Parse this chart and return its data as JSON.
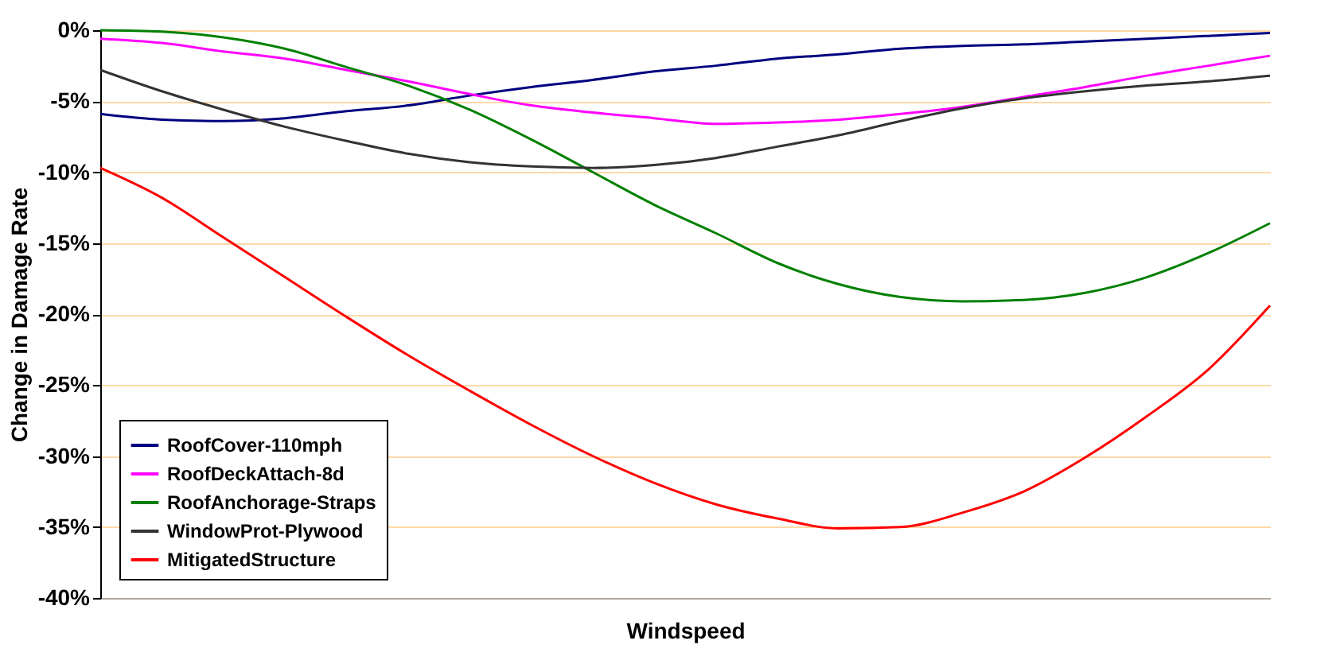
{
  "chart_data": {
    "type": "line",
    "xlabel": "Windspeed",
    "ylabel": "Change in Damage Rate",
    "categories": [
      null,
      null,
      null,
      null,
      null,
      null,
      null,
      null,
      null,
      null,
      null,
      null,
      null,
      null,
      null,
      null,
      null,
      null,
      null,
      null
    ],
    "ylim": [
      -40,
      0
    ],
    "yticks": [
      {
        "value": 0,
        "label": "0%"
      },
      {
        "value": -5,
        "label": "-5%"
      },
      {
        "value": -10,
        "label": "-10%"
      },
      {
        "value": -15,
        "label": "-15%"
      },
      {
        "value": -20,
        "label": "-20%"
      },
      {
        "value": -25,
        "label": "-25%"
      },
      {
        "value": -30,
        "label": "-30%"
      },
      {
        "value": -35,
        "label": "-35%"
      },
      {
        "value": -40,
        "label": "-40%"
      }
    ],
    "grid": "y",
    "legend": "bottom left",
    "marker": "none",
    "line_style": "solid",
    "tick_labels": "y",
    "series": [
      {
        "name": "RoofCover-110mph",
        "color": "#000080",
        "values": [
          -5.9,
          -6.3,
          -6.4,
          -6.2,
          -5.7,
          -5.3,
          -4.6,
          -4.0,
          -3.5,
          -2.9,
          -2.5,
          -2.0,
          -1.7,
          -1.3,
          -1.1,
          -1.0,
          -0.8,
          -0.6,
          -0.4,
          -0.2
        ]
      },
      {
        "name": "RoofDeckAttach-8d",
        "color": "#ff00ff",
        "values": [
          -0.6,
          -0.9,
          -1.5,
          -2.0,
          -2.8,
          -3.6,
          -4.5,
          -5.3,
          -5.8,
          -6.2,
          -6.6,
          -6.5,
          -6.3,
          -5.9,
          -5.4,
          -4.7,
          -4.0,
          -3.2,
          -2.5,
          -1.8
        ]
      },
      {
        "name": "RoofAnchorage-Straps",
        "color": "#008000",
        "values": [
          0,
          -0.1,
          -0.5,
          -1.3,
          -2.6,
          -3.9,
          -5.6,
          -7.7,
          -10.0,
          -12.3,
          -14.3,
          -16.4,
          -17.9,
          -18.8,
          -19.1,
          -19.0,
          -18.5,
          -17.4,
          -15.7,
          -13.6
        ]
      },
      {
        "name": "WindowProt-Plywood",
        "color": "#333333",
        "values": [
          -2.8,
          -4.3,
          -5.6,
          -6.8,
          -7.8,
          -8.7,
          -9.3,
          -9.6,
          -9.7,
          -9.5,
          -9.0,
          -8.2,
          -7.4,
          -6.4,
          -5.5,
          -4.8,
          -4.3,
          -3.9,
          -3.6,
          -3.2
        ]
      },
      {
        "name": "MitigatedStructure",
        "color": "#ff0000",
        "values": [
          -9.7,
          -11.8,
          -14.6,
          -17.4,
          -20.2,
          -22.9,
          -25.4,
          -27.8,
          -30.0,
          -31.9,
          -33.4,
          -34.4,
          -35.1,
          -35.0,
          -34.0,
          -32.5,
          -30.1,
          -27.2,
          -23.9,
          -19.4
        ]
      }
    ]
  }
}
